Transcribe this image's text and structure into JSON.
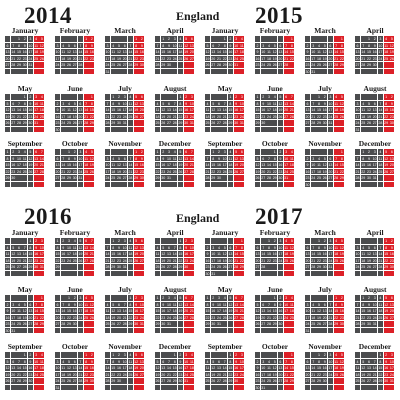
{
  "blocks": [
    {
      "year": "2014",
      "region": "England"
    },
    {
      "year": "2015",
      "region": ""
    },
    {
      "year": "2016",
      "region": "England"
    },
    {
      "year": "2017",
      "region": ""
    }
  ],
  "months": [
    "January",
    "February",
    "March",
    "April",
    "May",
    "June",
    "July",
    "August",
    "September",
    "October",
    "November",
    "December"
  ],
  "colors": {
    "weekday": "#4b4c4e",
    "weekend": "#dc2027",
    "empty": "#d4d4d4",
    "text": "#1a1a1a"
  }
}
